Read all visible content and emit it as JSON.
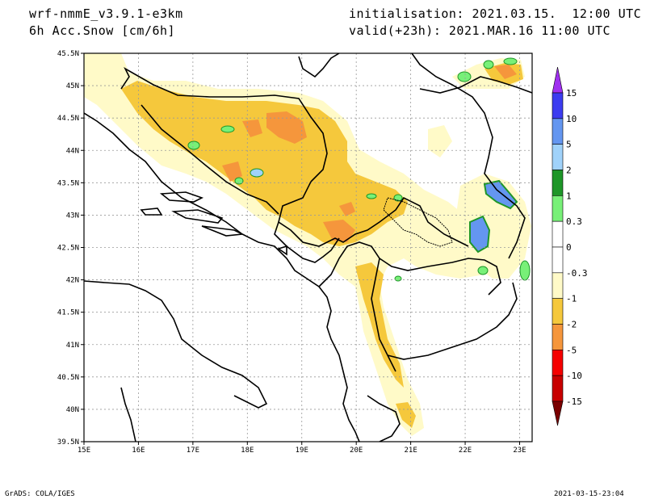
{
  "header": {
    "model": "wrf-nmmE_v3.9.1-e3km",
    "field": "6h Acc.Snow [cm/6h]",
    "init": "initialisation: 2021.03.15.  12:00 UTC",
    "valid": "valid(+23h): 2021.MAR.16 11:00 UTC"
  },
  "axes": {
    "lat_labels": [
      "45.5N",
      "45N",
      "44.5N",
      "44N",
      "43.5N",
      "43N",
      "42.5N",
      "42N",
      "41.5N",
      "41N",
      "40.5N",
      "40N",
      "39.5N"
    ],
    "lon_labels": [
      "15E",
      "16E",
      "17E",
      "18E",
      "19E",
      "20E",
      "21E",
      "22E",
      "23E"
    ]
  },
  "colorbar": {
    "labels": [
      "15",
      "10",
      "5",
      "2",
      "1",
      "0.3",
      "0",
      "-0.3",
      "-1",
      "-2",
      "-5",
      "-10",
      "-15"
    ],
    "colors": [
      "#3c3cf0",
      "#6496f0",
      "#a0d2fa",
      "#1e9628",
      "#78f078",
      "#ffffff",
      "#ffffff",
      "#fffac8",
      "#f5c83c",
      "#f5963c",
      "#f50000",
      "#c80000",
      "#a00000"
    ],
    "top_arrow_color": "#a030f0",
    "bottom_arrow_color": "#7a0000"
  },
  "footer": {
    "left": "GrADS: COLA/IGES",
    "right": "2021-03-15-23:04"
  }
}
